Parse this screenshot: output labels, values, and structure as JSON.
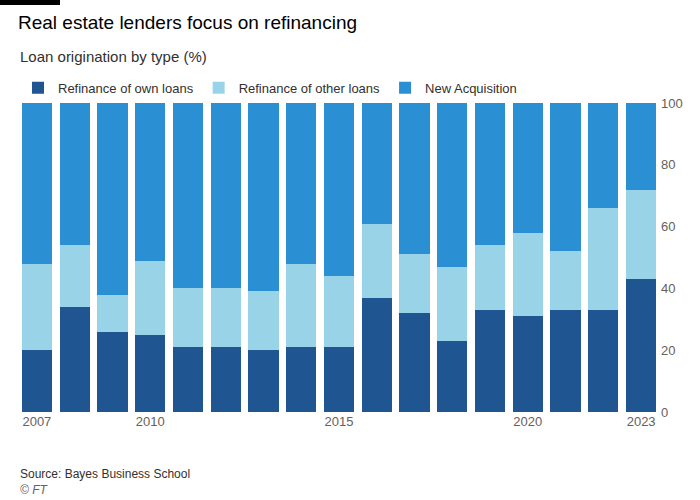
{
  "chart_data": {
    "type": "bar",
    "title": "Real estate lenders focus on refinancing",
    "subtitle": "Loan origination by type (%)",
    "annotations": [
      "Source: Bayes Business School",
      "© FT"
    ],
    "categories": [
      "2007",
      null,
      null,
      "2010",
      null,
      null,
      null,
      null,
      "2015",
      null,
      null,
      null,
      null,
      "2020",
      null,
      null,
      "2023"
    ],
    "series": [
      {
        "name": "Refinance of own loans",
        "color": "#1f5591",
        "values": [
          20,
          34,
          26,
          25,
          21,
          21,
          20,
          21,
          21,
          37,
          32,
          23,
          33,
          31,
          33,
          33,
          43
        ]
      },
      {
        "name": "Refinance of other loans",
        "color": "#98d3e8",
        "values": [
          28,
          20,
          12,
          24,
          19,
          19,
          19,
          27,
          23,
          24,
          19,
          24,
          21,
          27,
          19,
          33,
          29
        ]
      },
      {
        "name": "New Acquisition",
        "color": "#2b8fd3",
        "values": [
          52,
          46,
          62,
          51,
          60,
          60,
          61,
          52,
          56,
          39,
          49,
          53,
          46,
          42,
          48,
          34,
          28
        ]
      }
    ],
    "stacked": true,
    "ylim": [
      0,
      100
    ],
    "yticks": [
      0,
      20,
      40,
      60,
      80,
      100
    ],
    "grid": false,
    "legend": "top left"
  }
}
